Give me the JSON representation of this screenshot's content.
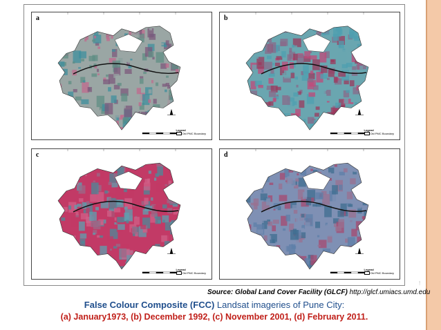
{
  "figure": {
    "panels": [
      {
        "letter": "a",
        "legend_title": "Legend",
        "legend_item": "Old PMC Boundary",
        "palette": [
          "#9aa6a4",
          "#c06a8e",
          "#5f8e84",
          "#7c5a7c",
          "#3f8f9e"
        ]
      },
      {
        "letter": "b",
        "legend_title": "Legend",
        "legend_item": "Old PMC Boundary",
        "palette": [
          "#6aa6b0",
          "#c04a7a",
          "#8a6a8a",
          "#4f9fb0",
          "#9b3a5e"
        ]
      },
      {
        "letter": "c",
        "legend_title": "Legend",
        "legend_item": "Old PMC Boundary",
        "palette": [
          "#c23a66",
          "#5ea0b0",
          "#9a6a88",
          "#d06088",
          "#4c8a9a"
        ]
      },
      {
        "letter": "d",
        "legend_title": "Legend",
        "legend_item": "Old PMC Boundary",
        "palette": [
          "#7f90b4",
          "#a64a70",
          "#5d7fa8",
          "#9a7090",
          "#3f6d90"
        ]
      }
    ]
  },
  "source": {
    "bold_part": "Source: Global Land Cover Facility (GLCF)",
    "url": "http://glcf.umiacs.umd.edu"
  },
  "caption": {
    "line1_bold": "False Colour Composite (FCC)",
    "line1_rest": " Landsat imageries of Pune City:",
    "line2": "(a) January1973, (b) December 1992, (c) November 2001, (d) February 2011."
  },
  "slide_number": "!"
}
